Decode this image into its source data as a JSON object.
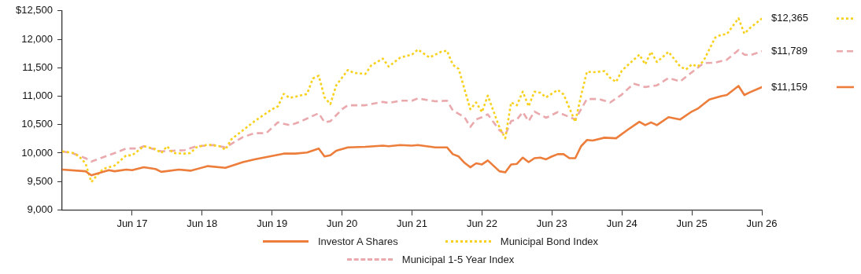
{
  "chart_data": {
    "type": "line",
    "xlim": [
      "2016-06",
      "2026-06"
    ],
    "xticks": [
      {
        "value": "2017-06",
        "label": "Jun 17"
      },
      {
        "value": "2018-06",
        "label": "Jun 18"
      },
      {
        "value": "2019-06",
        "label": "Jun 19"
      },
      {
        "value": "2020-06",
        "label": "Jun 20"
      },
      {
        "value": "2021-06",
        "label": "Jun 21"
      },
      {
        "value": "2022-06",
        "label": "Jun 22"
      },
      {
        "value": "2023-06",
        "label": "Jun 23"
      },
      {
        "value": "2024-06",
        "label": "Jun 24"
      },
      {
        "value": "2025-06",
        "label": "Jun 25"
      },
      {
        "value": "2026-06",
        "label": "Jun 26"
      }
    ],
    "ylim": [
      9000,
      12500
    ],
    "yticks": [
      {
        "value": 9000,
        "label": "9,000"
      },
      {
        "value": 9500,
        "label": "9,500"
      },
      {
        "value": 10000,
        "label": "10,000"
      },
      {
        "value": 10500,
        "label": "10,500"
      },
      {
        "value": 11000,
        "label": "11,000"
      },
      {
        "value": 11500,
        "label": "11,500"
      },
      {
        "value": 12000,
        "label": "12,000"
      },
      {
        "value": 12500,
        "label": "$12,500"
      }
    ],
    "legend": "bottom",
    "series": [
      {
        "name": "Investor A Shares",
        "color": "#ed7d3a",
        "line_style": "solid",
        "x": [
          "2016-06",
          "2016-10",
          "2016-11",
          "2017-02",
          "2017-03",
          "2017-05",
          "2017-06",
          "2017-08",
          "2017-10",
          "2017-11",
          "2018-02",
          "2018-04",
          "2018-07",
          "2018-10",
          "2019-01",
          "2019-03",
          "2019-08",
          "2019-10",
          "2019-12",
          "2020-02",
          "2020-03",
          "2020-04",
          "2020-05",
          "2020-07",
          "2020-10",
          "2021-01",
          "2021-02",
          "2021-04",
          "2021-06",
          "2021-07",
          "2021-10",
          "2021-12",
          "2022-01",
          "2022-02",
          "2022-03",
          "2022-04",
          "2022-05",
          "2022-06",
          "2022-07",
          "2022-09",
          "2022-10",
          "2022-11",
          "2022-12",
          "2023-01",
          "2023-02",
          "2023-03",
          "2023-04",
          "2023-05",
          "2023-06",
          "2023-07",
          "2023-08",
          "2023-09",
          "2023-10",
          "2023-11",
          "2023-12",
          "2024-01",
          "2024-03",
          "2024-05",
          "2024-07",
          "2024-09",
          "2024-10",
          "2024-11",
          "2024-12",
          "2025-02",
          "2025-04",
          "2025-06",
          "2025-07",
          "2025-09",
          "2025-11",
          "2025-12",
          "2026-02",
          "2026-03",
          "2026-04",
          "2026-06"
        ],
        "values": [
          9710,
          9680,
          9610,
          9700,
          9680,
          9710,
          9700,
          9750,
          9720,
          9670,
          9710,
          9690,
          9770,
          9740,
          9840,
          9890,
          9990,
          9990,
          10010,
          10080,
          9940,
          9960,
          10040,
          10100,
          10110,
          10130,
          10120,
          10140,
          10130,
          10140,
          10100,
          10100,
          9980,
          9940,
          9830,
          9750,
          9820,
          9800,
          9870,
          9680,
          9660,
          9800,
          9810,
          9920,
          9840,
          9910,
          9920,
          9890,
          9940,
          9980,
          9980,
          9910,
          9910,
          10120,
          10230,
          10220,
          10270,
          10260,
          10410,
          10550,
          10490,
          10540,
          10490,
          10630,
          10590,
          10730,
          10780,
          10940,
          11000,
          11020,
          11180,
          11020,
          11070,
          11159
        ]
      },
      {
        "name": "Municipal Bond Index",
        "color": "#f7d11e",
        "line_style": "dotted",
        "x": [
          "2016-06",
          "2016-08",
          "2016-09",
          "2016-10",
          "2016-11",
          "2016-12",
          "2017-01",
          "2017-03",
          "2017-05",
          "2017-06",
          "2017-08",
          "2017-10",
          "2017-11",
          "2017-12",
          "2018-01",
          "2018-03",
          "2018-04",
          "2018-05",
          "2018-07",
          "2018-09",
          "2018-10",
          "2018-11",
          "2019-01",
          "2019-03",
          "2019-06",
          "2019-07",
          "2019-08",
          "2019-09",
          "2019-10",
          "2019-12",
          "2020-01",
          "2020-02",
          "2020-03",
          "2020-04",
          "2020-05",
          "2020-07",
          "2020-08",
          "2020-10",
          "2020-11",
          "2021-01",
          "2021-02",
          "2021-04",
          "2021-06",
          "2021-07",
          "2021-09",
          "2021-11",
          "2021-12",
          "2022-01",
          "2022-02",
          "2022-04",
          "2022-05",
          "2022-06",
          "2022-07",
          "2022-09",
          "2022-10",
          "2022-11",
          "2022-12",
          "2023-01",
          "2023-02",
          "2023-03",
          "2023-04",
          "2023-05",
          "2023-07",
          "2023-08",
          "2023-10",
          "2023-11",
          "2023-12",
          "2024-01",
          "2024-03",
          "2024-04",
          "2024-05",
          "2024-06",
          "2024-09",
          "2024-10",
          "2024-11",
          "2024-12",
          "2025-02",
          "2025-04",
          "2025-05",
          "2025-06",
          "2025-07",
          "2025-08",
          "2025-10",
          "2025-11",
          "2025-12",
          "2026-02",
          "2026-03",
          "2026-04",
          "2026-06"
        ],
        "values": [
          10030,
          10000,
          9930,
          9820,
          9490,
          9610,
          9720,
          9780,
          9960,
          9960,
          10120,
          10070,
          10000,
          10120,
          10000,
          9990,
          10000,
          10100,
          10150,
          10120,
          10060,
          10240,
          10400,
          10560,
          10770,
          10820,
          11040,
          10970,
          10990,
          11040,
          11310,
          11360,
          10980,
          10860,
          11190,
          11460,
          11410,
          11390,
          11540,
          11660,
          11520,
          11680,
          11730,
          11820,
          11680,
          11780,
          11800,
          11550,
          11480,
          10770,
          10890,
          10720,
          11010,
          10450,
          10260,
          10890,
          10840,
          11080,
          10820,
          11080,
          11060,
          10980,
          11110,
          11030,
          10550,
          11010,
          11430,
          11420,
          11440,
          11320,
          11250,
          11450,
          11730,
          11560,
          11780,
          11600,
          11780,
          11520,
          11470,
          11560,
          11520,
          11620,
          12030,
          12080,
          12090,
          12370,
          12100,
          12200,
          12365
        ]
      },
      {
        "name": "Municipal 1-5 Year Index",
        "color": "#eaa9ad",
        "line_style": "dashed",
        "x": [
          "2016-06",
          "2016-08",
          "2016-10",
          "2016-11",
          "2017-03",
          "2017-05",
          "2017-07",
          "2017-08",
          "2017-11",
          "2018-03",
          "2018-05",
          "2018-08",
          "2018-10",
          "2019-01",
          "2019-03",
          "2019-05",
          "2019-07",
          "2019-09",
          "2019-10",
          "2019-11",
          "2020-02",
          "2020-03",
          "2020-04",
          "2020-06",
          "2020-07",
          "2020-10",
          "2021-01",
          "2021-02",
          "2021-04",
          "2021-06",
          "2021-07",
          "2021-10",
          "2021-12",
          "2022-01",
          "2022-03",
          "2022-04",
          "2022-05",
          "2022-06",
          "2022-07",
          "2022-09",
          "2022-10",
          "2022-11",
          "2022-12",
          "2023-01",
          "2023-02",
          "2023-03",
          "2023-05",
          "2023-07",
          "2023-10",
          "2023-12",
          "2024-02",
          "2024-04",
          "2024-06",
          "2024-08",
          "2024-10",
          "2024-12",
          "2025-02",
          "2025-04",
          "2025-06",
          "2025-08",
          "2025-10",
          "2025-12",
          "2026-02",
          "2026-03",
          "2026-04",
          "2026-06"
        ],
        "values": [
          10030,
          9990,
          9910,
          9850,
          10000,
          10080,
          10080,
          10120,
          10030,
          10050,
          10120,
          10140,
          10100,
          10280,
          10350,
          10350,
          10540,
          10490,
          10520,
          10560,
          10700,
          10540,
          10560,
          10770,
          10840,
          10840,
          10900,
          10880,
          10920,
          10920,
          10960,
          10910,
          10920,
          10750,
          10630,
          10460,
          10590,
          10630,
          10680,
          10400,
          10320,
          10560,
          10590,
          10720,
          10560,
          10730,
          10620,
          10720,
          10590,
          10950,
          10950,
          10890,
          11030,
          11220,
          11160,
          11190,
          11320,
          11260,
          11420,
          11580,
          11590,
          11640,
          11810,
          11730,
          11720,
          11789
        ]
      }
    ],
    "annotations": [
      {
        "text": "$12,365",
        "x": "2026-06",
        "y": 12365
      },
      {
        "text": "$11,789",
        "x": "2026-06",
        "y": 11789
      },
      {
        "text": "$11,159",
        "x": "2026-06",
        "y": 11159
      }
    ]
  }
}
